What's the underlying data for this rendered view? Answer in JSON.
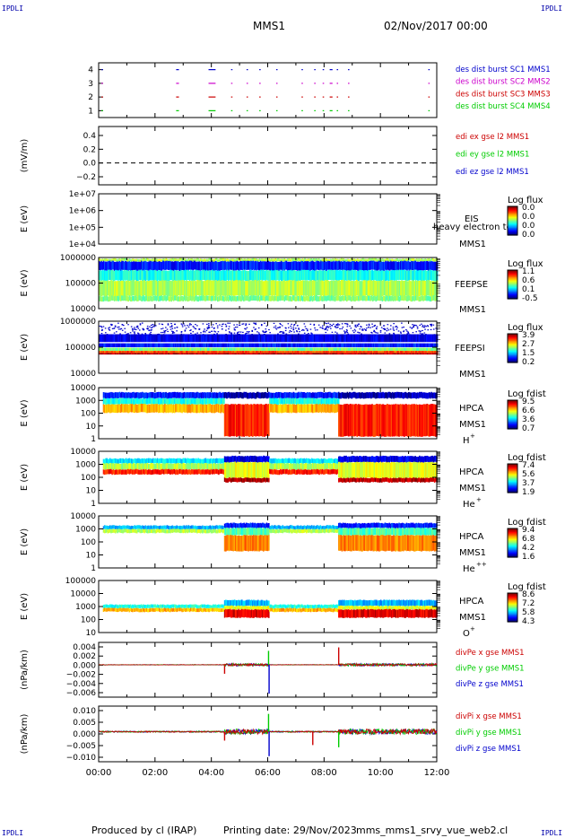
{
  "header": {
    "corner_labels": [
      "IPDLI",
      "IPDLI",
      "IPDLI",
      "IPDLI"
    ],
    "spacecraft": "MMS1",
    "date": "02/Nov/2017 00:00"
  },
  "footer": {
    "produced_by": "Produced by cl (IRAP)",
    "printing_date": "Printing date: 29/Nov/2023",
    "filename": "mms_mms1_srvy_vue_web2.cl"
  },
  "x_axis": {
    "ticks": [
      "00:00",
      "02:00",
      "04:00",
      "06:00",
      "08:00",
      "10:00",
      "12:00"
    ],
    "range_hours": [
      0,
      12
    ]
  },
  "colors": {
    "blue": "#0000cc",
    "magenta": "#cc00cc",
    "red": "#cc0000",
    "green": "#00cc00"
  },
  "chart_data": [
    {
      "type": "line",
      "panel": "burst",
      "y_ticks": [
        "4",
        "3",
        "2",
        "1"
      ],
      "ylim": [
        0.5,
        4.5
      ],
      "legend": [
        "des dist burst SC1 MMS1",
        "des dist burst SC2 MMS2",
        "des dist burst SC3 MMS3",
        "des dist burst SC4 MMS4"
      ],
      "legend_colors": [
        "#0000cc",
        "#cc00cc",
        "#cc0000",
        "#00cc00"
      ],
      "burst_hours": [
        [
          0.1,
          0.15
        ],
        [
          2.75,
          2.85
        ],
        [
          3.9,
          4.15
        ],
        [
          4.7,
          4.75
        ],
        [
          5.25,
          5.3
        ],
        [
          5.7,
          5.75
        ],
        [
          6.3,
          6.35
        ],
        [
          7.2,
          7.25
        ],
        [
          7.65,
          7.7
        ],
        [
          7.95,
          8.0
        ],
        [
          8.2,
          8.3
        ],
        [
          8.45,
          8.5
        ],
        [
          8.85,
          8.9
        ],
        [
          11.7,
          11.75
        ]
      ]
    },
    {
      "type": "line",
      "panel": "edi",
      "ylabel": "(mV/m)",
      "y_ticks": [
        "0.4",
        "0.2",
        "0.0",
        "−0.2"
      ],
      "ylim": [
        -0.3,
        0.5
      ],
      "legend": [
        "edi ex gse l2 MMS1",
        "edi ey gse l2 MMS1",
        "edi ez gse l2 MMS1"
      ],
      "legend_colors": [
        "#cc0000",
        "#00cc00",
        "#0000cc"
      ],
      "zero_line": 0.0
    },
    {
      "type": "heatmap",
      "panel": "eis",
      "ylabel": "E (eV)",
      "y_ticks": [
        "1e+07",
        "1e+06",
        "1e+05",
        "1e+04"
      ],
      "log_range": [
        4,
        7
      ],
      "label_lines": [
        "EIS",
        "MMS1"
      ],
      "overlay_text": "heavy electron to",
      "colorbar_title": "Log flux",
      "colorbar_ticks": [
        "0.0",
        "0.0",
        "0.0",
        "0.0"
      ],
      "empty": true
    },
    {
      "type": "heatmap",
      "panel": "feepse",
      "ylabel": "E (eV)",
      "y_ticks": [
        "1000000",
        "100000",
        "10000"
      ],
      "log_range": [
        4,
        6
      ],
      "label_lines": [
        "FEEPSE",
        "MMS1"
      ],
      "colorbar_title": "Log flux",
      "colorbar_ticks": [
        "1.1",
        "0.6",
        "0.1",
        "-0.5"
      ],
      "bands": [
        {
          "from": 5.85,
          "to": 5.95,
          "level": 0.55
        },
        {
          "from": 5.5,
          "to": 5.85,
          "level": 0.15
        },
        {
          "from": 5.1,
          "to": 5.5,
          "level": 0.4
        },
        {
          "from": 4.5,
          "to": 5.1,
          "level": 0.55
        },
        {
          "from": 4.3,
          "to": 4.5,
          "level": 0.5
        }
      ]
    },
    {
      "type": "heatmap",
      "panel": "feepsi",
      "ylabel": "E (eV)",
      "y_ticks": [
        "1000000",
        "100000",
        "10000"
      ],
      "log_range": [
        4,
        6
      ],
      "label_lines": [
        "FEEPSI",
        "MMS1"
      ],
      "colorbar_title": "Log flux",
      "colorbar_ticks": [
        "3.9",
        "2.7",
        "1.5",
        "0.2"
      ],
      "bands": [
        {
          "from": 5.2,
          "to": 5.5,
          "level": 0.1
        },
        {
          "from": 5.0,
          "to": 5.15,
          "level": 0.15
        },
        {
          "from": 4.86,
          "to": 4.98,
          "level": 0.5
        },
        {
          "from": 4.78,
          "to": 4.86,
          "level": 0.8
        },
        {
          "from": 4.72,
          "to": 4.78,
          "level": 0.95
        }
      ]
    },
    {
      "type": "heatmap",
      "panel": "hpca_h",
      "ylabel": "E (eV)",
      "y_ticks": [
        "10000",
        "1000",
        "100",
        "10",
        "1"
      ],
      "log_range": [
        0,
        4.3
      ],
      "label_lines": [
        "HPCA",
        "MMS1"
      ],
      "species": "H",
      "species_sup": "+",
      "colorbar_title": "Log fdist",
      "colorbar_ticks": [
        "9.5",
        "6.6",
        "3.6",
        "0.7"
      ],
      "quiet": [
        {
          "from": 3.4,
          "to": 3.9,
          "level": 0.15
        },
        {
          "from": 2.9,
          "to": 3.4,
          "level": 0.4
        },
        {
          "from": 2.2,
          "to": 2.9,
          "level": 0.7
        }
      ],
      "active": [
        {
          "from": 3.4,
          "to": 3.9,
          "level": 0.05
        },
        {
          "from": 0.2,
          "to": 2.9,
          "level": 0.85
        }
      ],
      "active_hours": [
        [
          4.45,
          6.05
        ],
        [
          8.5,
          12.0
        ]
      ]
    },
    {
      "type": "heatmap",
      "panel": "hpca_he",
      "ylabel": "E (eV)",
      "y_ticks": [
        "10000",
        "1000",
        "100",
        "10",
        "1"
      ],
      "log_range": [
        0,
        4.3
      ],
      "label_lines": [
        "HPCA",
        "MMS1"
      ],
      "species": "He",
      "species_sup": "+",
      "colorbar_title": "Log fdist",
      "colorbar_ticks": [
        "7.4",
        "5.6",
        "3.7",
        "1.9"
      ],
      "quiet": [
        {
          "from": 3.3,
          "to": 3.7,
          "level": 0.35
        },
        {
          "from": 2.8,
          "to": 3.3,
          "level": 0.55
        },
        {
          "from": 2.4,
          "to": 2.8,
          "level": 0.85
        }
      ],
      "active": [
        {
          "from": 3.4,
          "to": 3.9,
          "level": 0.1
        },
        {
          "from": 2.1,
          "to": 3.4,
          "level": 0.6
        },
        {
          "from": 1.75,
          "to": 2.1,
          "level": 0.95
        }
      ],
      "active_hours": [
        [
          4.45,
          6.05
        ],
        [
          8.5,
          12.0
        ]
      ]
    },
    {
      "type": "heatmap",
      "panel": "hpca_he2",
      "ylabel": "E (eV)",
      "y_ticks": [
        "10000",
        "1000",
        "100",
        "10",
        "1"
      ],
      "log_range": [
        0,
        4.3
      ],
      "label_lines": [
        "HPCA",
        "MMS1"
      ],
      "species": "He",
      "species_sup": "++",
      "colorbar_title": "Log fdist",
      "colorbar_ticks": [
        "9.4",
        "6.8",
        "4.2",
        "1.6"
      ],
      "quiet": [
        {
          "from": 3.2,
          "to": 3.5,
          "level": 0.3
        },
        {
          "from": 2.9,
          "to": 3.2,
          "level": 0.55
        }
      ],
      "active": [
        {
          "from": 3.3,
          "to": 3.7,
          "level": 0.15
        },
        {
          "from": 2.7,
          "to": 3.3,
          "level": 0.45
        },
        {
          "from": 1.4,
          "to": 2.7,
          "level": 0.75
        }
      ],
      "active_hours": [
        [
          4.45,
          6.05
        ],
        [
          8.5,
          12.0
        ]
      ]
    },
    {
      "type": "heatmap",
      "panel": "hpca_o",
      "ylabel": "E (eV)",
      "y_ticks": [
        "100000",
        "10000",
        "1000",
        "100",
        "10"
      ],
      "log_range": [
        0.8,
        5.3
      ],
      "label_lines": [
        "HPCA",
        "MMS1"
      ],
      "species": "O",
      "species_sup": "+",
      "colorbar_title": "Log fdist",
      "colorbar_ticks": [
        "8.6",
        "7.2",
        "5.8",
        "4.3"
      ],
      "quiet": [
        {
          "from": 2.9,
          "to": 3.2,
          "level": 0.4
        },
        {
          "from": 2.6,
          "to": 2.9,
          "level": 0.7
        }
      ],
      "active": [
        {
          "from": 3.1,
          "to": 3.6,
          "level": 0.3
        },
        {
          "from": 2.8,
          "to": 3.1,
          "level": 0.6
        },
        {
          "from": 2.1,
          "to": 2.8,
          "level": 0.9
        }
      ],
      "active_hours": [
        [
          4.45,
          6.05
        ],
        [
          8.5,
          12.0
        ]
      ]
    },
    {
      "type": "line",
      "panel": "divpe",
      "ylabel": "(nPa/km)",
      "y_ticks": [
        "0.004",
        "0.002",
        "0.000",
        "−0.002",
        "−0.004",
        "−0.006"
      ],
      "ylim": [
        -0.0065,
        0.0045
      ],
      "legend": [
        "divPe x gse MMS1",
        "divPe y gse MMS1",
        "divPe z gse MMS1"
      ],
      "legend_colors": [
        "#cc0000",
        "#00cc00",
        "#0000cc"
      ],
      "spikes": [
        {
          "hour": 4.47,
          "value": -0.0018
        },
        {
          "hour": 6.03,
          "value": 0.0028
        },
        {
          "hour": 6.05,
          "value": -0.0058
        },
        {
          "hour": 8.52,
          "value": 0.0035
        }
      ]
    },
    {
      "type": "line",
      "panel": "divpi",
      "ylabel": "(nPa/km)",
      "y_ticks": [
        "0.010",
        "0.005",
        "0.000",
        "−0.005",
        "−0.010"
      ],
      "ylim": [
        -0.0135,
        0.0115
      ],
      "legend": [
        "divPi x gse MMS1",
        "divPi y gse MMS1",
        "divPi z gse MMS1"
      ],
      "legend_colors": [
        "#cc0000",
        "#00cc00",
        "#0000cc"
      ],
      "spikes": [
        {
          "hour": 4.47,
          "value": -0.004
        },
        {
          "hour": 6.03,
          "value": 0.008
        },
        {
          "hour": 6.05,
          "value": -0.011
        },
        {
          "hour": 7.6,
          "value": -0.006
        },
        {
          "hour": 8.52,
          "value": -0.007
        }
      ]
    }
  ]
}
